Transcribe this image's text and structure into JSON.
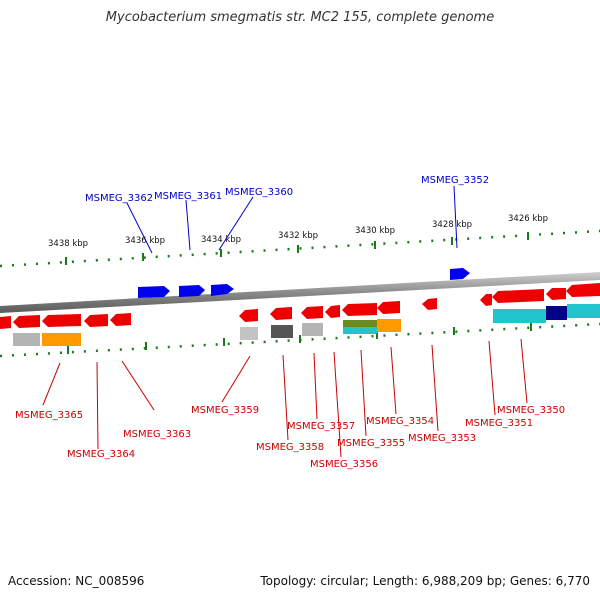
{
  "title": "Mycobacterium smegmatis str. MC2 155, complete genome",
  "footer": {
    "accession": "Accession: NC_008596",
    "summary": "Topology: circular; Length: 6,988,209 bp; Genes: 6,770"
  },
  "scale": {
    "ticks": [
      "3438 kbp",
      "3436 kbp",
      "3434 kbp",
      "3432 kbp",
      "3430 kbp",
      "3428 kbp",
      "3426 kbp"
    ]
  },
  "colors": {
    "forward_gene": "#0000ee",
    "reverse_gene": "#ee0000",
    "label_forward": "#0000cc",
    "label_reverse": "#cc0000",
    "backbone": "#888888",
    "tick": "#1a7a1a",
    "cog_gray": "#b4b4b4",
    "cog_darkgray": "#555555",
    "cog_orange": "#ff9900",
    "cog_cyan": "#22c4cc",
    "cog_navy": "#000088",
    "cog_olive": "#6e8a1a"
  },
  "genes": {
    "forward": [
      "MSMEG_3362",
      "MSMEG_3361",
      "MSMEG_3360",
      "MSMEG_3352"
    ],
    "reverse": [
      "MSMEG_3365",
      "MSMEG_3364",
      "MSMEG_3363",
      "MSMEG_3359",
      "MSMEG_3358",
      "MSMEG_3357",
      "MSMEG_3356",
      "MSMEG_3355",
      "MSMEG_3354",
      "MSMEG_3353",
      "MSMEG_3351",
      "MSMEG_3350"
    ]
  }
}
